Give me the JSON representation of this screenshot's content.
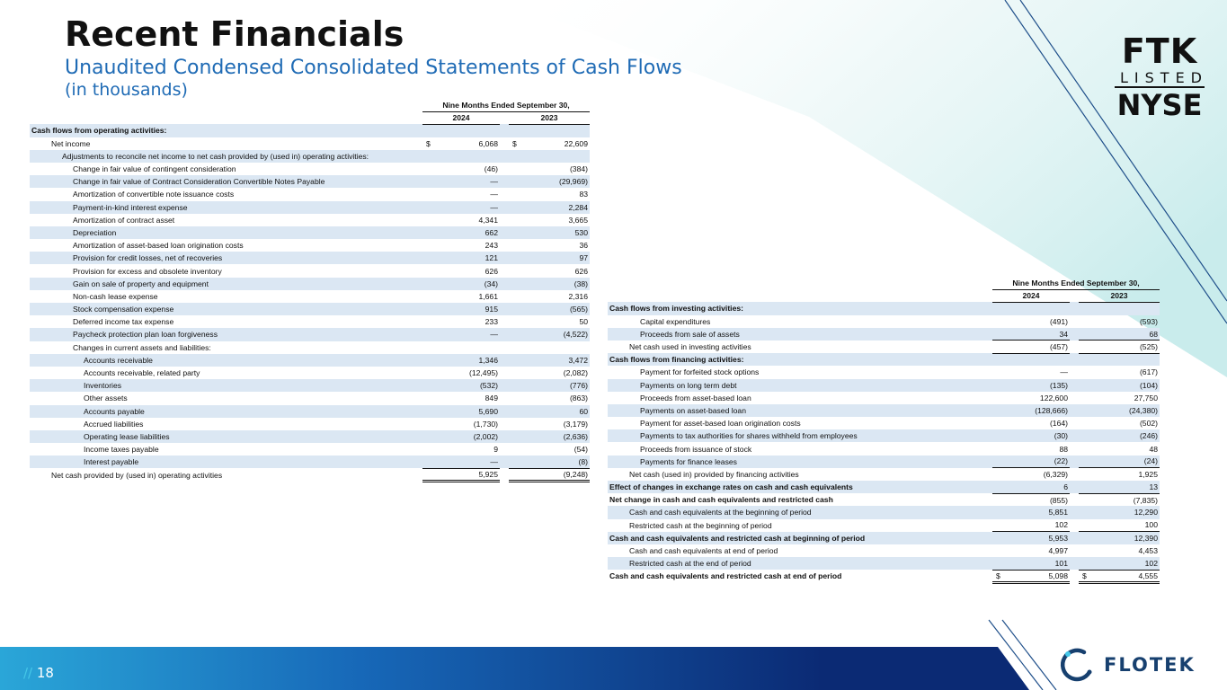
{
  "header": {
    "title": "Recent Financials",
    "subtitle": "Unaudited Condensed Consolidated Statements of Cash Flows",
    "subtitle2": "(in thousands)"
  },
  "badge": {
    "line1": "FTK",
    "line2": "LISTED",
    "line3": "NYSE"
  },
  "footer": {
    "slashes": "//",
    "page": "18",
    "brand": "FLOTEK"
  },
  "colors": {
    "accent": "#1f6bb5",
    "shade": "#dbe7f3",
    "footer_dark": "#0c2a6b",
    "footer_light": "#1f7bd0"
  },
  "operating": {
    "period_label": "Nine Months Ended September 30,",
    "col1": "2024",
    "col2": "2023",
    "rows": [
      {
        "label": "Cash flows from operating activities:",
        "v1": "",
        "v2": "",
        "indent": 0,
        "bold": true,
        "shade": true
      },
      {
        "label": "Net income",
        "c1": "$",
        "v1": "6,068",
        "c2": "$",
        "v2": "22,609",
        "indent": 1
      },
      {
        "label": "Adjustments to reconcile net income to net cash provided by (used in) operating activities:",
        "v1": "",
        "v2": "",
        "indent": 2,
        "shade": true
      },
      {
        "label": "Change in fair value of contingent consideration",
        "v1": "(46)",
        "v2": "(384)",
        "indent": 3
      },
      {
        "label": "Change in fair value of Contract Consideration Convertible Notes Payable",
        "v1": "—",
        "v2": "(29,969)",
        "indent": 3,
        "shade": true
      },
      {
        "label": "Amortization of convertible note issuance costs",
        "v1": "—",
        "v2": "83",
        "indent": 3
      },
      {
        "label": "Payment-in-kind interest expense",
        "v1": "—",
        "v2": "2,284",
        "indent": 3,
        "shade": true
      },
      {
        "label": "Amortization of contract asset",
        "v1": "4,341",
        "v2": "3,665",
        "indent": 3
      },
      {
        "label": "Depreciation",
        "v1": "662",
        "v2": "530",
        "indent": 3,
        "shade": true
      },
      {
        "label": "Amortization of asset-based loan origination costs",
        "v1": "243",
        "v2": "36",
        "indent": 3
      },
      {
        "label": "Provision for credit losses, net of recoveries",
        "v1": "121",
        "v2": "97",
        "indent": 3,
        "shade": true
      },
      {
        "label": "Provision for excess and obsolete inventory",
        "v1": "626",
        "v2": "626",
        "indent": 3
      },
      {
        "label": "Gain on sale of property and equipment",
        "v1": "(34)",
        "v2": "(38)",
        "indent": 3,
        "shade": true
      },
      {
        "label": "Non-cash lease expense",
        "v1": "1,661",
        "v2": "2,316",
        "indent": 3
      },
      {
        "label": "Stock compensation expense",
        "v1": "915",
        "v2": "(565)",
        "indent": 3,
        "shade": true
      },
      {
        "label": "Deferred income tax expense",
        "v1": "233",
        "v2": "50",
        "indent": 3
      },
      {
        "label": "Paycheck protection plan loan forgiveness",
        "v1": "—",
        "v2": "(4,522)",
        "indent": 3,
        "shade": true
      },
      {
        "label": "Changes in current assets and liabilities:",
        "v1": "",
        "v2": "",
        "indent": 3
      },
      {
        "label": "Accounts receivable",
        "v1": "1,346",
        "v2": "3,472",
        "indent": 4,
        "shade": true
      },
      {
        "label": "Accounts receivable, related party",
        "v1": "(12,495)",
        "v2": "(2,082)",
        "indent": 4
      },
      {
        "label": "Inventories",
        "v1": "(532)",
        "v2": "(776)",
        "indent": 4,
        "shade": true
      },
      {
        "label": "Other assets",
        "v1": "849",
        "v2": "(863)",
        "indent": 4
      },
      {
        "label": "Accounts payable",
        "v1": "5,690",
        "v2": "60",
        "indent": 4,
        "shade": true
      },
      {
        "label": "Accrued liabilities",
        "v1": "(1,730)",
        "v2": "(3,179)",
        "indent": 4
      },
      {
        "label": "Operating lease liabilities",
        "v1": "(2,002)",
        "v2": "(2,636)",
        "indent": 4,
        "shade": true
      },
      {
        "label": "Income taxes payable",
        "v1": "9",
        "v2": "(54)",
        "indent": 4
      },
      {
        "label": "Interest payable",
        "v1": "—",
        "v2": "(8)",
        "indent": 4,
        "shade": true,
        "underline": true
      },
      {
        "label": "Net cash provided by (used in) operating activities",
        "v1": "5,925",
        "v2": "(9,248)",
        "indent": 1,
        "double": true
      }
    ]
  },
  "investing": {
    "period_label": "Nine Months Ended September 30,",
    "col1": "2024",
    "col2": "2023",
    "rows": [
      {
        "label": "Cash flows from investing activities:",
        "v1": "",
        "v2": "",
        "indent": 0,
        "bold": true,
        "shade": true
      },
      {
        "label": "Capital expenditures",
        "v1": "(491)",
        "v2": "(593)",
        "indent": 2
      },
      {
        "label": "Proceeds from sale of assets",
        "v1": "34",
        "v2": "68",
        "indent": 2,
        "shade": true,
        "underline": true
      },
      {
        "label": "Net cash used in investing activities",
        "v1": "(457)",
        "v2": "(525)",
        "indent": 1,
        "underline": true
      },
      {
        "label": "Cash flows from financing activities:",
        "v1": "",
        "v2": "",
        "indent": 0,
        "bold": true,
        "shade": true
      },
      {
        "label": "Payment for forfeited stock options",
        "v1": "—",
        "v2": "(617)",
        "indent": 2
      },
      {
        "label": "Payments on long term debt",
        "v1": "(135)",
        "v2": "(104)",
        "indent": 2,
        "shade": true
      },
      {
        "label": "Proceeds from asset-based loan",
        "v1": "122,600",
        "v2": "27,750",
        "indent": 2
      },
      {
        "label": "Payments on asset-based loan",
        "v1": "(128,666)",
        "v2": "(24,380)",
        "indent": 2,
        "shade": true
      },
      {
        "label": "Payment for asset-based loan origination costs",
        "v1": "(164)",
        "v2": "(502)",
        "indent": 2
      },
      {
        "label": "Payments to tax authorities for shares withheld from employees",
        "v1": "(30)",
        "v2": "(246)",
        "indent": 2,
        "shade": true
      },
      {
        "label": "Proceeds from issuance of stock",
        "v1": "88",
        "v2": "48",
        "indent": 2
      },
      {
        "label": "Payments for finance leases",
        "v1": "(22)",
        "v2": "(24)",
        "indent": 2,
        "shade": true,
        "underline": true
      },
      {
        "label": "Net cash (used in) provided by financing activities",
        "v1": "(6,329)",
        "v2": "1,925",
        "indent": 1
      },
      {
        "label": "Effect of changes in exchange rates on cash and cash equivalents",
        "v1": "6",
        "v2": "13",
        "indent": 0,
        "bold": true,
        "shade": true,
        "underline": true
      },
      {
        "label": "Net change in cash and cash equivalents and restricted cash",
        "v1": "(855)",
        "v2": "(7,835)",
        "indent": 0,
        "bold": true
      },
      {
        "label": "Cash and cash equivalents at the beginning of period",
        "v1": "5,851",
        "v2": "12,290",
        "indent": 1,
        "shade": true
      },
      {
        "label": "Restricted cash at the beginning of period",
        "v1": "102",
        "v2": "100",
        "indent": 1,
        "underline": true
      },
      {
        "label": "Cash and cash equivalents and restricted cash at beginning of period",
        "v1": "5,953",
        "v2": "12,390",
        "indent": 0,
        "bold": true,
        "shade": true
      },
      {
        "label": "Cash and cash equivalents at end of period",
        "v1": "4,997",
        "v2": "4,453",
        "indent": 1
      },
      {
        "label": "Restricted cash at the end of period",
        "v1": "101",
        "v2": "102",
        "indent": 1,
        "shade": true,
        "underline": true
      },
      {
        "label": "Cash and cash equivalents and restricted cash at end of period",
        "c1": "$",
        "v1": "5,098",
        "c2": "$",
        "v2": "4,555",
        "indent": 0,
        "bold": true,
        "double": true
      }
    ]
  }
}
